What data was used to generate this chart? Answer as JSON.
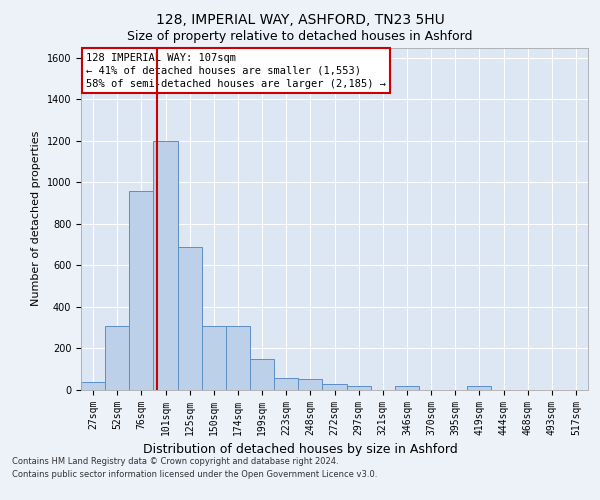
{
  "title1": "128, IMPERIAL WAY, ASHFORD, TN23 5HU",
  "title2": "Size of property relative to detached houses in Ashford",
  "xlabel": "Distribution of detached houses by size in Ashford",
  "ylabel": "Number of detached properties",
  "bin_labels": [
    "27sqm",
    "52sqm",
    "76sqm",
    "101sqm",
    "125sqm",
    "150sqm",
    "174sqm",
    "199sqm",
    "223sqm",
    "248sqm",
    "272sqm",
    "297sqm",
    "321sqm",
    "346sqm",
    "370sqm",
    "395sqm",
    "419sqm",
    "444sqm",
    "468sqm",
    "493sqm",
    "517sqm"
  ],
  "bar_heights": [
    40,
    310,
    960,
    1200,
    690,
    310,
    310,
    150,
    60,
    55,
    30,
    20,
    0,
    20,
    0,
    0,
    20,
    0,
    0,
    0,
    0
  ],
  "bar_color": "#bdd0e9",
  "bar_edge_color": "#5b8ec4",
  "property_line_label": "128 IMPERIAL WAY: 107sqm",
  "annotation_line1": "← 41% of detached houses are smaller (1,553)",
  "annotation_line2": "58% of semi-detached houses are larger (2,185) →",
  "annotation_box_color": "#ffffff",
  "annotation_box_edge": "#cc0000",
  "vline_color": "#cc0000",
  "vline_x_index": 3,
  "ylim": [
    0,
    1650
  ],
  "yticks": [
    0,
    200,
    400,
    600,
    800,
    1000,
    1200,
    1400,
    1600
  ],
  "footnote1": "Contains HM Land Registry data © Crown copyright and database right 2024.",
  "footnote2": "Contains public sector information licensed under the Open Government Licence v3.0.",
  "bg_color": "#edf1f8",
  "plot_bg_color": "#dde6f3",
  "grid_color": "#ffffff",
  "title1_fontsize": 10,
  "title2_fontsize": 9,
  "ylabel_fontsize": 8,
  "xlabel_fontsize": 9,
  "tick_fontsize": 7,
  "annot_fontsize": 7.5
}
